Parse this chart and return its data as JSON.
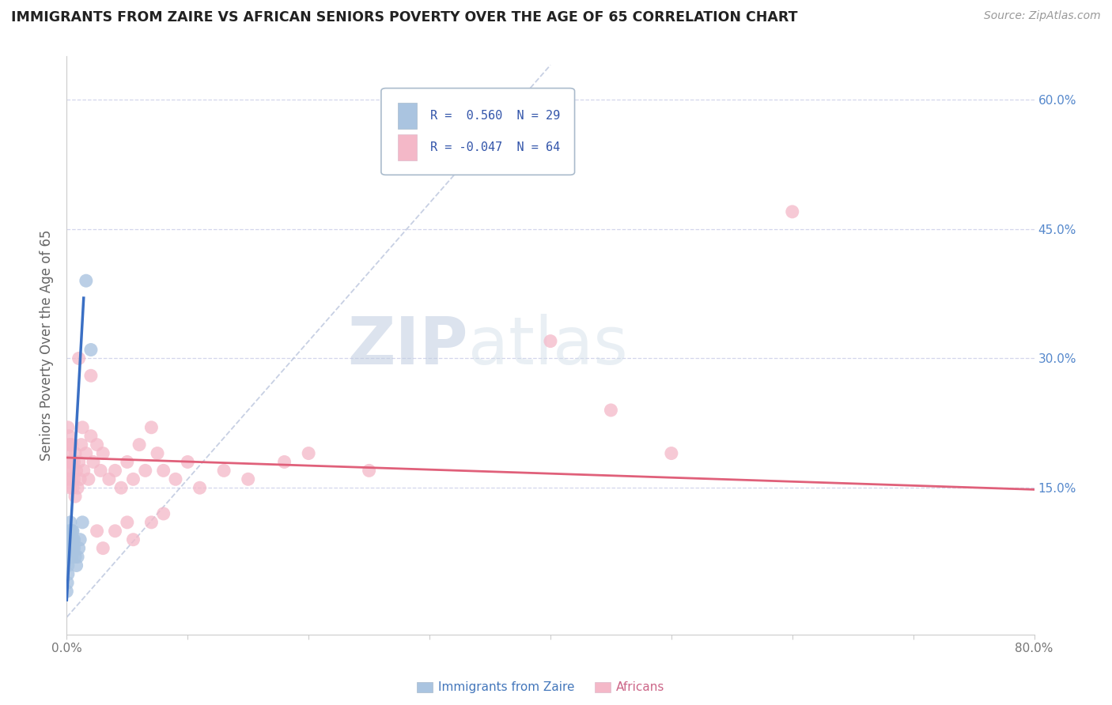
{
  "title": "IMMIGRANTS FROM ZAIRE VS AFRICAN SENIORS POVERTY OVER THE AGE OF 65 CORRELATION CHART",
  "source": "Source: ZipAtlas.com",
  "ylabel": "Seniors Poverty Over the Age of 65",
  "legend_r1": "R =  0.560  N = 29",
  "legend_r2": "R = -0.047  N = 64",
  "legend_label1": "Immigrants from Zaire",
  "legend_label2": "Africans",
  "right_yticks": [
    "60.0%",
    "45.0%",
    "30.0%",
    "15.0%"
  ],
  "right_ytick_vals": [
    0.6,
    0.45,
    0.3,
    0.15
  ],
  "xlim": [
    0.0,
    0.8
  ],
  "ylim": [
    -0.02,
    0.65
  ],
  "blue_color": "#aac4e0",
  "pink_color": "#f4b8c8",
  "trend_blue": "#3a6fc4",
  "trend_pink": "#e0607a",
  "dash_color": "#b0bcd8",
  "background": "#ffffff",
  "watermark1": "ZIP",
  "watermark2": "atlas",
  "zaire_x": [
    0.0,
    0.0005,
    0.001,
    0.001,
    0.0015,
    0.002,
    0.002,
    0.002,
    0.003,
    0.003,
    0.003,
    0.003,
    0.003,
    0.004,
    0.004,
    0.0045,
    0.005,
    0.005,
    0.005,
    0.006,
    0.006,
    0.007,
    0.008,
    0.009,
    0.01,
    0.011,
    0.013,
    0.016,
    0.02
  ],
  "zaire_y": [
    0.03,
    0.04,
    0.05,
    0.06,
    0.07,
    0.08,
    0.09,
    0.1,
    0.07,
    0.08,
    0.09,
    0.1,
    0.11,
    0.07,
    0.09,
    0.1,
    0.08,
    0.09,
    0.1,
    0.08,
    0.09,
    0.07,
    0.06,
    0.07,
    0.08,
    0.09,
    0.11,
    0.39,
    0.31
  ],
  "african_x": [
    0.0005,
    0.001,
    0.001,
    0.0015,
    0.002,
    0.002,
    0.002,
    0.003,
    0.003,
    0.003,
    0.004,
    0.004,
    0.004,
    0.005,
    0.005,
    0.006,
    0.006,
    0.007,
    0.007,
    0.008,
    0.009,
    0.01,
    0.011,
    0.012,
    0.013,
    0.014,
    0.016,
    0.018,
    0.02,
    0.022,
    0.025,
    0.028,
    0.03,
    0.035,
    0.04,
    0.045,
    0.05,
    0.055,
    0.06,
    0.065,
    0.07,
    0.075,
    0.08,
    0.09,
    0.1,
    0.11,
    0.13,
    0.15,
    0.18,
    0.2,
    0.25,
    0.4,
    0.45,
    0.5,
    0.6,
    0.01,
    0.02,
    0.025,
    0.03,
    0.04,
    0.05,
    0.055,
    0.07,
    0.08
  ],
  "african_y": [
    0.18,
    0.2,
    0.22,
    0.16,
    0.17,
    0.19,
    0.21,
    0.15,
    0.18,
    0.2,
    0.16,
    0.18,
    0.2,
    0.15,
    0.17,
    0.16,
    0.18,
    0.14,
    0.19,
    0.17,
    0.15,
    0.18,
    0.16,
    0.2,
    0.22,
    0.17,
    0.19,
    0.16,
    0.21,
    0.18,
    0.2,
    0.17,
    0.19,
    0.16,
    0.17,
    0.15,
    0.18,
    0.16,
    0.2,
    0.17,
    0.22,
    0.19,
    0.17,
    0.16,
    0.18,
    0.15,
    0.17,
    0.16,
    0.18,
    0.19,
    0.17,
    0.32,
    0.24,
    0.19,
    0.47,
    0.3,
    0.28,
    0.1,
    0.08,
    0.1,
    0.11,
    0.09,
    0.11,
    0.12
  ],
  "blue_trend_x": [
    0.0,
    0.014
  ],
  "blue_trend_y": [
    0.02,
    0.37
  ],
  "pink_trend_x": [
    0.0,
    0.8
  ],
  "pink_trend_y": [
    0.185,
    0.148
  ]
}
